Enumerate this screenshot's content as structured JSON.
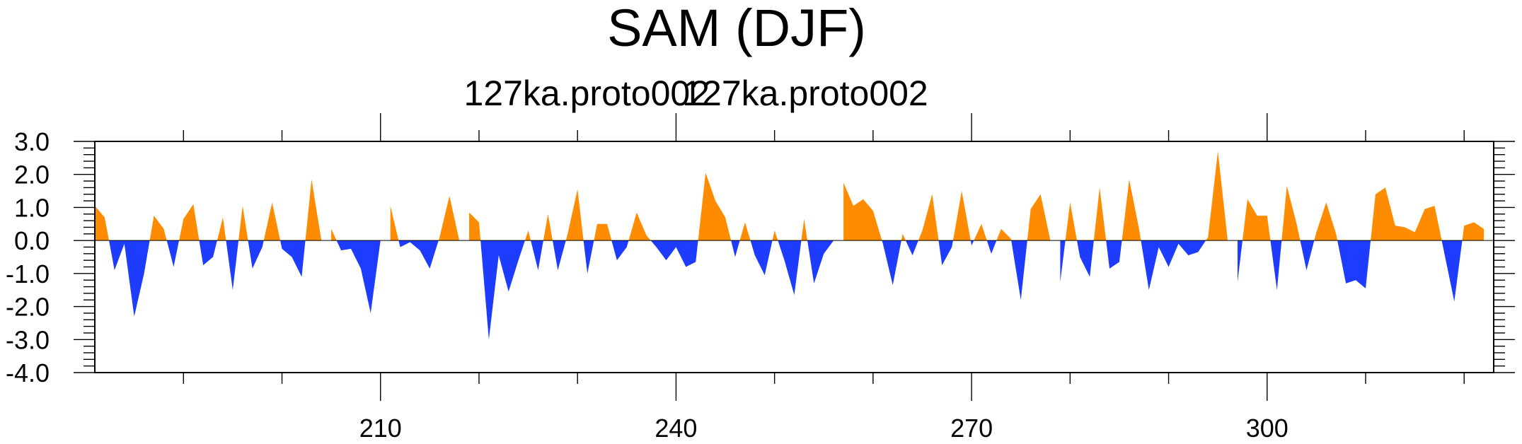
{
  "chart_data": {
    "type": "area",
    "title": "SAM (DJF)",
    "subtitle_left": "127ka.proto002",
    "subtitle_right": "127ka.proto002",
    "xlabel": "",
    "ylabel": "",
    "xlim": [
      181,
      323
    ],
    "ylim": [
      -4.0,
      3.0
    ],
    "x_ticks": [
      210,
      240,
      270,
      300
    ],
    "y_ticks": [
      -4.0,
      -3.0,
      -2.0,
      -1.0,
      0.0,
      1.0,
      2.0,
      3.0
    ],
    "y_tick_labels": [
      "-4.0",
      "-3.0",
      "-2.0",
      "-1.0",
      "0.0",
      "1.0",
      "2.0",
      "3.0"
    ],
    "positive_color": "#ff8c00",
    "negative_color": "#1e3cff",
    "x_start": 181,
    "values": [
      1.05,
      0.7,
      -0.9,
      -0.1,
      -2.3,
      -1.0,
      0.75,
      0.35,
      -0.8,
      0.65,
      1.1,
      -0.75,
      -0.5,
      0.7,
      -1.5,
      1.05,
      -0.85,
      -0.2,
      1.15,
      -0.25,
      -0.5,
      -1.1,
      1.85,
      0.0,
      0.35,
      -0.3,
      -0.25,
      -0.85,
      -2.2,
      0.0,
      1.05,
      -0.2,
      -0.05,
      -0.3,
      -0.85,
      0.1,
      1.35,
      0.0,
      0.85,
      0.55,
      -3.0,
      -0.45,
      -1.55,
      -0.6,
      0.3,
      -0.9,
      0.8,
      -0.9,
      0.2,
      1.55,
      -1.0,
      0.5,
      0.5,
      -0.6,
      -0.2,
      0.85,
      0.15,
      -0.2,
      -0.6,
      -0.2,
      -0.8,
      -0.65,
      2.05,
      1.2,
      0.7,
      -0.5,
      0.55,
      -0.45,
      -1.05,
      0.3,
      -0.6,
      -1.65,
      0.65,
      -1.3,
      -0.4,
      0.0,
      1.75,
      1.05,
      1.25,
      0.9,
      -0.1,
      -1.35,
      0.2,
      -0.45,
      0.3,
      1.4,
      -0.75,
      -0.2,
      1.5,
      -0.15,
      0.5,
      -0.4,
      0.35,
      0.05,
      -1.8,
      0.95,
      1.4,
      0.0,
      -1.25,
      1.15,
      -0.5,
      -1.1,
      1.6,
      -0.85,
      -0.65,
      1.85,
      0.35,
      -1.5,
      -0.2,
      -0.8,
      -0.1,
      -0.45,
      -0.35,
      0.1,
      2.7,
      0.0,
      -1.25,
      1.25,
      0.75,
      0.75,
      -1.5,
      1.65,
      0.5,
      -0.9,
      0.25,
      1.15,
      0.2,
      -1.3,
      -1.2,
      -1.45,
      1.4,
      1.6,
      0.45,
      0.4,
      0.25,
      0.95,
      1.05,
      -0.4,
      -1.85,
      0.45,
      0.55,
      0.35
    ]
  }
}
